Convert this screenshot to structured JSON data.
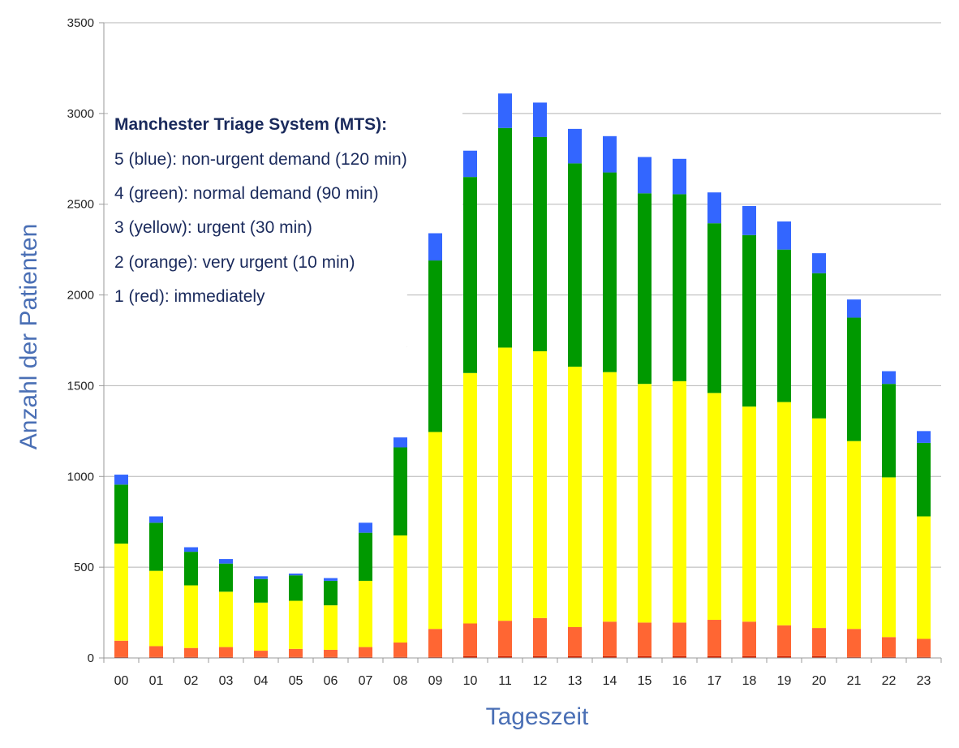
{
  "chart_data": {
    "type": "bar",
    "stacked": true,
    "xlabel": "Tageszeit",
    "ylabel": "Anzahl der Patienten",
    "ylim": [
      0,
      3500
    ],
    "yticks": [
      "0",
      "500",
      "1000",
      "1500",
      "2000",
      "2500",
      "3000",
      "3500"
    ],
    "grid": true,
    "categories": [
      "00",
      "01",
      "02",
      "03",
      "04",
      "05",
      "06",
      "07",
      "08",
      "09",
      "10",
      "11",
      "12",
      "13",
      "14",
      "15",
      "16",
      "17",
      "18",
      "19",
      "20",
      "21",
      "22",
      "23"
    ],
    "series": [
      {
        "color": "#cc2200",
        "values": [
          5,
          5,
          5,
          5,
          5,
          5,
          5,
          5,
          5,
          5,
          10,
          10,
          10,
          10,
          10,
          10,
          10,
          10,
          10,
          10,
          10,
          5,
          5,
          5
        ]
      },
      {
        "color": "#ff6633",
        "values": [
          90,
          60,
          50,
          55,
          35,
          45,
          40,
          55,
          80,
          155,
          180,
          195,
          210,
          160,
          190,
          185,
          185,
          200,
          190,
          170,
          155,
          155,
          110,
          100
        ]
      },
      {
        "color": "#ffff00",
        "values": [
          535,
          415,
          345,
          305,
          265,
          265,
          245,
          365,
          590,
          1085,
          1380,
          1505,
          1470,
          1435,
          1375,
          1315,
          1330,
          1250,
          1185,
          1230,
          1155,
          1035,
          880,
          675
        ]
      },
      {
        "color": "#009900",
        "values": [
          325,
          265,
          185,
          155,
          130,
          140,
          135,
          265,
          485,
          945,
          1080,
          1210,
          1180,
          1120,
          1100,
          1050,
          1030,
          935,
          945,
          840,
          800,
          680,
          515,
          405
        ]
      },
      {
        "color": "#3366ff",
        "values": [
          55,
          35,
          25,
          25,
          15,
          10,
          15,
          55,
          55,
          150,
          145,
          190,
          190,
          190,
          200,
          200,
          195,
          170,
          160,
          155,
          110,
          100,
          70,
          65
        ]
      }
    ]
  },
  "legend": {
    "title": "Manchester Triage System (MTS):",
    "lines": [
      "5 (blue): non-urgent demand (120 min)",
      "4 (green): normal demand (90 min)",
      "3 (yellow): urgent (30 min)",
      "2 (orange): very urgent (10 min)",
      "1 (red): immediately"
    ]
  }
}
